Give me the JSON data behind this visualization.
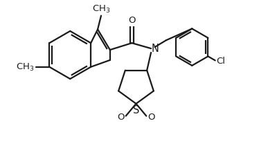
{
  "bg_color": "#ffffff",
  "line_color": "#1a1a1a",
  "line_width": 1.6,
  "font_size": 9.5,
  "figsize": [
    4.0,
    2.28
  ],
  "dpi": 100,
  "xlim": [
    0,
    4.0
  ],
  "ylim": [
    0,
    2.28
  ]
}
